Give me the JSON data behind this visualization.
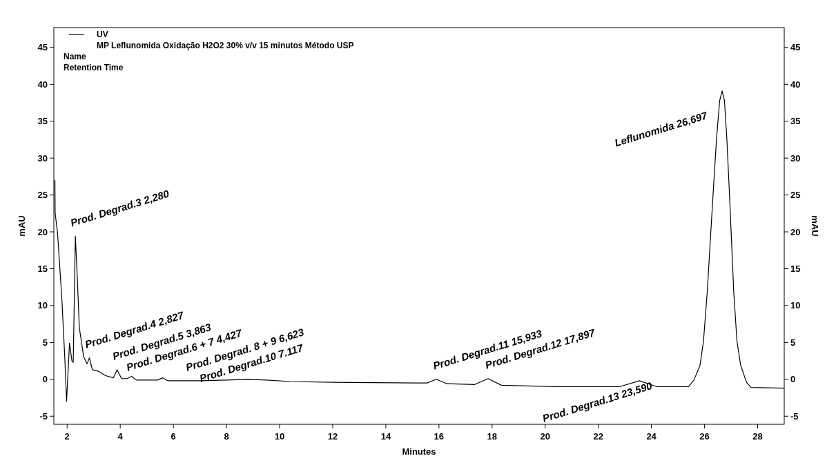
{
  "chart_data": {
    "type": "line",
    "title": "MP Leflunomida Oxidação H2O2 30% v/v 15 minutos Método USP",
    "xlabel": "Minutes",
    "ylabel": "mAU",
    "y2label": "mAU",
    "xlim": [
      1.5,
      29
    ],
    "xticks": [
      2,
      4,
      6,
      8,
      10,
      12,
      14,
      16,
      18,
      20,
      22,
      24,
      26,
      28
    ],
    "ylim": [
      -6.1,
      47.7
    ],
    "yticks": [
      -5,
      0,
      5,
      10,
      15,
      20,
      25,
      30,
      35,
      40,
      45
    ],
    "y2lim": [
      -6.1,
      47.7
    ],
    "y2ticks": [
      -5,
      0,
      5,
      10,
      15,
      20,
      25,
      30,
      35,
      40,
      45
    ],
    "grid": false,
    "legend": "top left",
    "marker": "none",
    "line_style": "solid",
    "series": [
      {
        "name": "UV",
        "color": "#000000",
        "x": [
          1.54,
          1.55,
          1.64,
          1.8,
          1.91,
          1.98,
          2.09,
          2.18,
          2.23,
          2.31,
          2.38,
          2.46,
          2.62,
          2.75,
          2.84,
          2.95,
          3.17,
          3.45,
          3.74,
          3.88,
          4.05,
          4.25,
          4.43,
          4.6,
          5.4,
          5.6,
          5.8,
          7,
          8,
          8.8,
          9.5,
          10.4,
          12,
          15.2,
          15.55,
          15.9,
          16.3,
          17.35,
          17.85,
          18.35,
          20.4,
          22.8,
          23.55,
          24.2,
          25.4,
          25.6,
          25.83,
          25.96,
          26.1,
          26.21,
          26.32,
          26.45,
          26.57,
          26.66,
          26.75,
          26.84,
          26.94,
          27.02,
          27.1,
          27.22,
          27.36,
          27.58,
          27.75,
          29
        ],
        "values": [
          27,
          22.5,
          19.8,
          11,
          3.1,
          -3.0,
          4.9,
          2.5,
          2.3,
          19.4,
          14,
          7,
          3.1,
          2.1,
          2.9,
          1.3,
          1.1,
          0.5,
          0.2,
          1.3,
          0.1,
          0.1,
          0.4,
          -0.1,
          -0.1,
          0.2,
          -0.2,
          -0.2,
          -0.1,
          0,
          -0.1,
          -0.3,
          -0.4,
          -0.5,
          -0.5,
          0,
          -0.6,
          -0.7,
          0.1,
          -0.8,
          -1.0,
          -1.0,
          -0.2,
          -1.0,
          -1.0,
          -0.1,
          1.9,
          5.2,
          11.8,
          18.4,
          25,
          32.6,
          37.8,
          39.1,
          37.8,
          32.6,
          25,
          18.4,
          11.8,
          5.2,
          1.9,
          -0.4,
          -1.1,
          -1.2
        ]
      }
    ],
    "annotations": [
      "Name",
      "Retention Time",
      {
        "text": "Prod. Degrad.3  2,280",
        "x": 2.28,
        "y": 19.4
      },
      {
        "text": "Prod. Degrad.4  2,827",
        "x": 2.827,
        "y": 2.9
      },
      {
        "text": "Prod. Degrad.5  3,863",
        "x": 3.863,
        "y": 1.3
      },
      {
        "text": "Prod. Degrad.6 + 7  4,427",
        "x": 4.427,
        "y": 0.4
      },
      {
        "text": "Prod. Degrad. 8 + 9  6,623",
        "x": 6.623,
        "y": -0.2
      },
      {
        "text": "Prod. Degrad.10  7.117",
        "x": 7.117,
        "y": -0.2
      },
      {
        "text": "Prod. Degrad.11 15,933",
        "x": 15.933,
        "y": 0
      },
      {
        "text": "Prod. Degrad.12  17,897",
        "x": 17.897,
        "y": 0.1
      },
      {
        "text": "Prod. Degrad.13  23,590",
        "x": 23.59,
        "y": -0.2
      },
      {
        "text": "Leflunomida 26,697",
        "x": 26.697,
        "y": 39.1
      }
    ]
  }
}
